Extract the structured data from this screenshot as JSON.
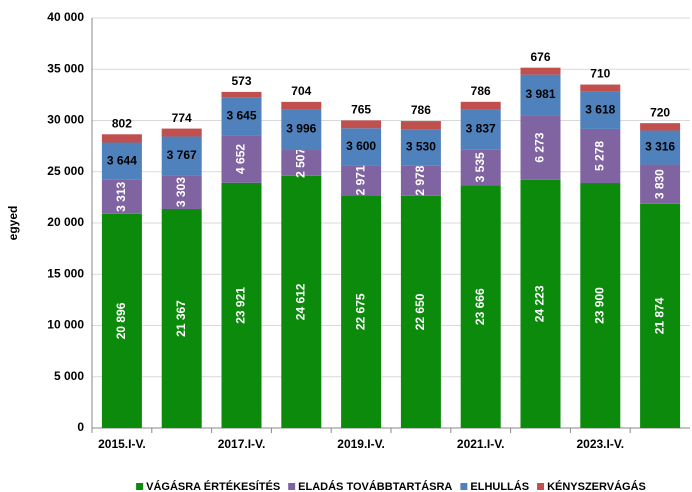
{
  "chart_data": {
    "type": "stacked_bar",
    "y_label": "egyed",
    "categories": [
      "2015.I-V.",
      null,
      "2017.I-V.",
      null,
      "2019.I-V.",
      null,
      "2021.I-V.",
      null,
      "2023.I-V.",
      null
    ],
    "ylim": [
      0,
      40000
    ],
    "yticks": [
      0,
      {
        "value": 5000,
        "label": "5 000"
      },
      {
        "value": 10000,
        "label": "10 000"
      },
      {
        "value": 15000,
        "label": "15 000"
      },
      {
        "value": 20000,
        "label": "20 000"
      },
      {
        "value": 25000,
        "label": "25 000"
      },
      {
        "value": 30000,
        "label": "30 000"
      },
      {
        "value": 35000,
        "label": "35 000"
      },
      {
        "value": 40000,
        "label": "40 000"
      }
    ],
    "grid": true,
    "series": [
      {
        "name": "VÁGÁSRA ÉRTÉKESÍTÉS",
        "color": "#0b8a0b",
        "values": [
          20896,
          21367,
          23921,
          24612,
          22675,
          22650,
          23666,
          24223,
          23900,
          21874
        ],
        "value_labels": [
          "20 896",
          "21 367",
          "23 921",
          "24 612",
          "22 675",
          "22 650",
          "23 666",
          "24 223",
          "23 900",
          "21 874"
        ]
      },
      {
        "name": "ELADÁS TOVÁBBTARTÁSRA",
        "color": "#8064a2",
        "values": [
          3313,
          3303,
          4652,
          2507,
          2971,
          2978,
          3535,
          6273,
          5278,
          3830
        ],
        "value_labels": [
          "3 313",
          "3 303",
          "4 652",
          "2 507",
          "2 971",
          "2 978",
          "3 535",
          "6 273",
          "5 278",
          "3 830"
        ]
      },
      {
        "name": "ELHULLÁS",
        "color": "#4f81bd",
        "values": [
          3644,
          3767,
          3645,
          3996,
          3600,
          3530,
          3837,
          3981,
          3618,
          3316
        ],
        "value_labels": [
          "3 644",
          "3 767",
          "3 645",
          "3 996",
          "3 600",
          "3 530",
          "3 837",
          "3 981",
          "3 618",
          "3 316"
        ]
      },
      {
        "name": "KÉNYSZERVÁGÁS",
        "color": "#c0504d",
        "values": [
          802,
          774,
          573,
          704,
          765,
          786,
          786,
          676,
          710,
          720
        ]
      }
    ]
  }
}
